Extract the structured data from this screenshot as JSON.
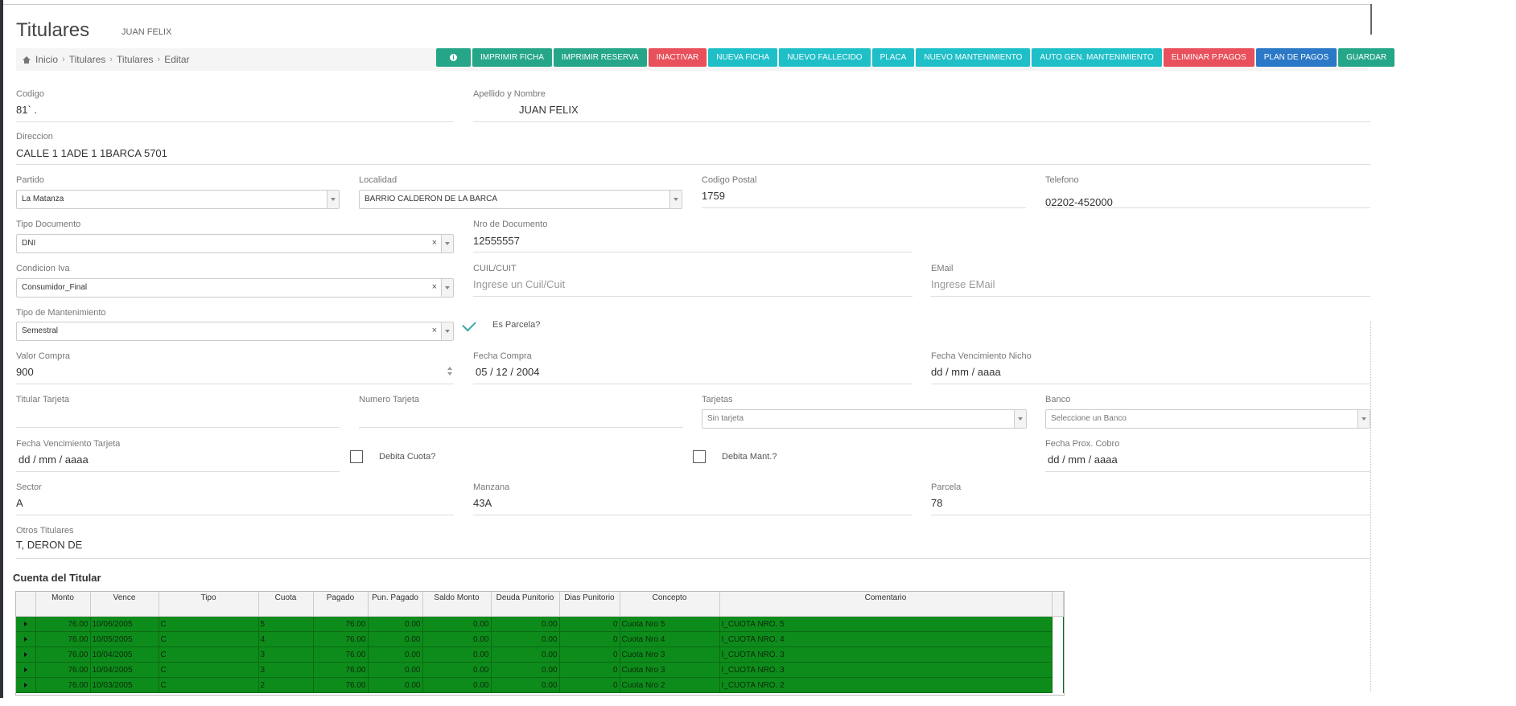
{
  "page": {
    "title": "Titulares",
    "subtitle": "JUAN FELIX"
  },
  "breadcrumb": [
    "Inicio",
    "Titulares",
    "Titulares",
    "Editar"
  ],
  "toolbar": [
    {
      "label": "",
      "color": "green",
      "name": "info-button"
    },
    {
      "label": "IMPRIMIR FICHA",
      "color": "green",
      "name": "imprimir-ficha-button"
    },
    {
      "label": "IMPRIMIR RESERVA",
      "color": "green",
      "name": "imprimir-reserva-button"
    },
    {
      "label": "INACTIVAR",
      "color": "red",
      "name": "inactivar-button"
    },
    {
      "label": "NUEVA FICHA",
      "color": "teal",
      "name": "nueva-ficha-button"
    },
    {
      "label": "NUEVO FALLECIDO",
      "color": "teal",
      "name": "nuevo-fallecido-button"
    },
    {
      "label": "PLACA",
      "color": "teal",
      "name": "placa-button"
    },
    {
      "label": "NUEVO MANTENIMIENTO",
      "color": "teal",
      "name": "nuevo-mantenimiento-button"
    },
    {
      "label": "AUTO GEN. MANTENIMIENTO",
      "color": "teal",
      "name": "auto-gen-mantenimiento-button"
    },
    {
      "label": "ELIMINAR P.PAGOS",
      "color": "red",
      "name": "eliminar-ppagos-button"
    },
    {
      "label": "PLAN DE PAGOS",
      "color": "blue",
      "name": "plan-de-pagos-button"
    },
    {
      "label": "GUARDAR",
      "color": "green",
      "name": "guardar-button"
    }
  ],
  "form": {
    "codigo": {
      "label": "Codigo",
      "value": "81` ."
    },
    "apellido": {
      "label": "Apellido y Nombre",
      "value": "JUAN FELIX"
    },
    "direccion": {
      "label": "Direccion",
      "value": "CALLE 1 1ADE 1 1BARCA 5701"
    },
    "partido": {
      "label": "Partido",
      "value": "La Matanza"
    },
    "localidad": {
      "label": "Localidad",
      "value": "BARRIO CALDERON DE LA BARCA"
    },
    "codigo_postal": {
      "label": "Codigo Postal",
      "value": "1759"
    },
    "telefono": {
      "label": "Telefono",
      "value": "02202-452000"
    },
    "tipo_documento": {
      "label": "Tipo Documento",
      "value": "DNI"
    },
    "nro_documento": {
      "label": "Nro de Documento",
      "value": "12555557"
    },
    "condicion_iva": {
      "label": "Condicion Iva",
      "value": "Consumidor_Final"
    },
    "cuil": {
      "label": "CUIL/CUIT",
      "placeholder": "Ingrese un Cuil/Cuit"
    },
    "email": {
      "label": "EMail",
      "placeholder": "Ingrese EMail"
    },
    "tipo_mantenimiento": {
      "label": "Tipo de Mantenimiento",
      "value": "Semestral"
    },
    "es_parcela": {
      "label": "Es Parcela?"
    },
    "valor_compra": {
      "label": "Valor Compra",
      "value": "900"
    },
    "fecha_compra": {
      "label": "Fecha Compra",
      "value": "05 / 12 / 2004"
    },
    "fecha_venc_nicho": {
      "label": "Fecha Vencimiento Nicho",
      "value": "dd / mm / aaaa"
    },
    "titular_tarjeta": {
      "label": "Titular Tarjeta"
    },
    "numero_tarjeta": {
      "label": "Numero Tarjeta"
    },
    "tarjetas": {
      "label": "Tarjetas",
      "value": "Sin tarjeta"
    },
    "banco": {
      "label": "Banco",
      "value": "Seleccione un Banco"
    },
    "fecha_venc_tarjeta": {
      "label": "Fecha Vencimiento Tarjeta",
      "value": "dd / mm / aaaa"
    },
    "debita_cuota": {
      "label": "Debita Cuota?"
    },
    "debita_mant": {
      "label": "Debita Mant.?"
    },
    "fecha_prox_cobro": {
      "label": "Fecha Prox. Cobro",
      "value": "dd / mm / aaaa"
    },
    "sector": {
      "label": "Sector",
      "value": "A"
    },
    "manzana": {
      "label": "Manzana",
      "value": "43A"
    },
    "parcela": {
      "label": "Parcela",
      "value": "78"
    },
    "otros_titulares": {
      "label": "Otros Titulares",
      "value": "T,  DERON DE"
    }
  },
  "cuenta": {
    "title": "Cuenta del Titular",
    "columns": [
      "",
      "Monto",
      "Vence",
      "Tipo",
      "Cuota",
      "Pagado",
      "Pun. Pagado",
      "Saldo Monto",
      "Deuda Punitorio",
      "Dias Punitorio",
      "Concepto",
      "Comentario"
    ],
    "rows": [
      [
        "76.00",
        "10/06/2005",
        "C",
        "5",
        "76.00",
        "0.00",
        "0.00",
        "0.00",
        "0",
        "Cuota Nro 5",
        "I_CUOTA NRO. 5"
      ],
      [
        "76.00",
        "10/05/2005",
        "C",
        "4",
        "76.00",
        "0.00",
        "0.00",
        "0.00",
        "0",
        "Cuota Nro 4",
        "I_CUOTA NRO. 4"
      ],
      [
        "76.00",
        "10/04/2005",
        "C",
        "3",
        "76.00",
        "0.00",
        "0.00",
        "0.00",
        "0",
        "Cuota Nro 3",
        "I_CUOTA NRO. 3"
      ],
      [
        "76.00",
        "10/04/2005",
        "C",
        "3",
        "76.00",
        "0.00",
        "0.00",
        "0.00",
        "0",
        "Cuota Nro 3",
        "I_CUOTA NRO. 3"
      ],
      [
        "76.00",
        "10/03/2005",
        "C",
        "2",
        "76.00",
        "0.00",
        "0.00",
        "0.00",
        "0",
        "Cuota Nro 2",
        "I_CUOTA NRO. 2"
      ]
    ]
  },
  "colors": {
    "row_green": "#0e8c1b",
    "btn_green": "#26a689",
    "btn_red": "#e8505b",
    "btn_teal": "#1fbfc8",
    "btn_blue": "#2a78c6"
  }
}
